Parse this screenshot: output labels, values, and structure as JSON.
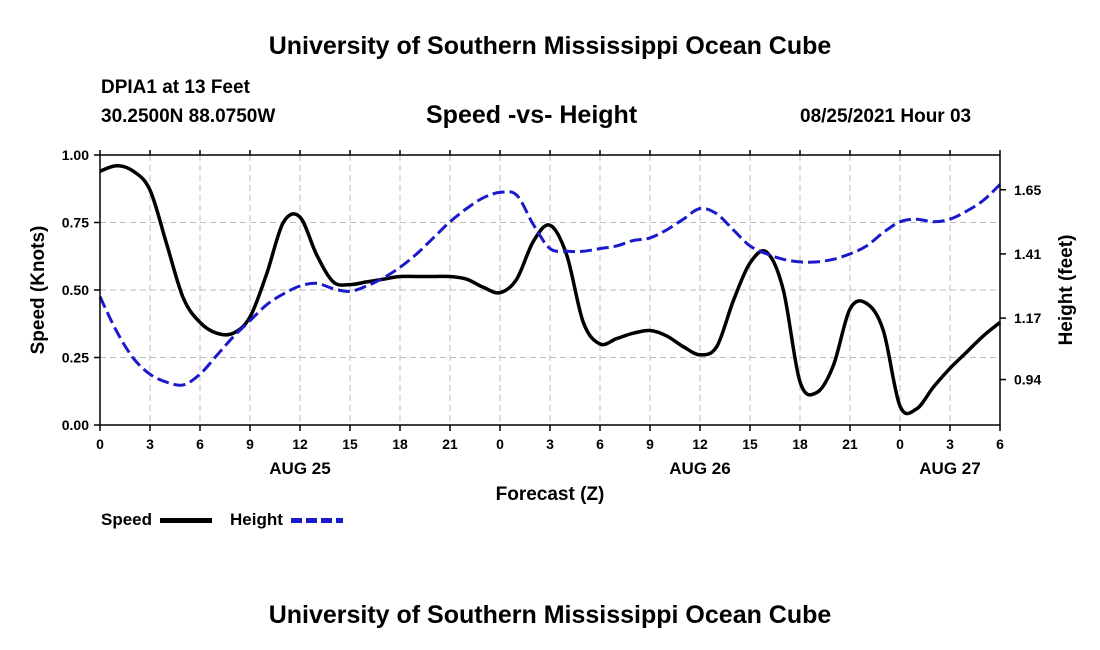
{
  "header": {
    "title": "University of Southern Mississippi Ocean Cube",
    "station": "DPIA1 at 13 Feet",
    "coords": "30.2500N  88.0750W",
    "chart_title": "Speed -vs- Height",
    "timestamp": "08/25/2021 Hour 03"
  },
  "footer": {
    "title": "University of Southern Mississippi Ocean Cube"
  },
  "legend": {
    "speed_label": "Speed",
    "height_label": "Height"
  },
  "colors": {
    "speed": "#000000",
    "height": "#1a1acc",
    "grid": "#bbbbbb"
  },
  "chart_data": {
    "type": "line",
    "title": "Speed -vs- Height",
    "xlabel": "Forecast (Z)",
    "ylabel": "Speed (Knots)",
    "y2label": "Height (feet)",
    "xlim": [
      0,
      54
    ],
    "ylim": [
      0,
      1.0
    ],
    "y2lim": [
      0.77,
      1.78
    ],
    "grid": true,
    "x_ticks": [
      0,
      3,
      6,
      9,
      12,
      15,
      18,
      21,
      24,
      27,
      30,
      33,
      36,
      39,
      42,
      45,
      48,
      51,
      54
    ],
    "x_tick_labels": [
      "0",
      "3",
      "6",
      "9",
      "12",
      "15",
      "18",
      "21",
      "0",
      "3",
      "6",
      "9",
      "12",
      "15",
      "18",
      "21",
      "0",
      "3",
      "6"
    ],
    "date_labels": [
      {
        "x": 12,
        "label": "AUG 25"
      },
      {
        "x": 36,
        "label": "AUG 26"
      },
      {
        "x": 51,
        "label": "AUG 27"
      }
    ],
    "y_ticks": [
      0.0,
      0.25,
      0.5,
      0.75,
      1.0
    ],
    "y_tick_labels": [
      "0.00",
      "0.25",
      "0.50",
      "0.75",
      "1.00"
    ],
    "y2_ticks": [
      0.94,
      1.17,
      1.41,
      1.65
    ],
    "y2_tick_labels": [
      "0.94",
      "1.17",
      "1.41",
      "1.65"
    ],
    "series": [
      {
        "name": "Speed",
        "axis": "left",
        "style": "solid",
        "x": [
          0,
          1,
          2,
          3,
          4,
          5,
          6,
          7,
          8,
          9,
          10,
          11,
          12,
          13,
          14,
          15,
          16,
          17,
          18,
          19,
          20,
          21,
          22,
          23,
          24,
          25,
          26,
          27,
          28,
          29,
          30,
          31,
          32,
          33,
          34,
          35,
          36,
          37,
          38,
          39,
          40,
          41,
          42,
          43,
          44,
          45,
          46,
          47,
          48,
          49,
          50,
          51,
          52,
          53,
          54
        ],
        "values": [
          0.94,
          0.96,
          0.94,
          0.87,
          0.67,
          0.47,
          0.38,
          0.34,
          0.34,
          0.4,
          0.56,
          0.75,
          0.77,
          0.63,
          0.53,
          0.52,
          0.53,
          0.54,
          0.55,
          0.55,
          0.55,
          0.55,
          0.54,
          0.51,
          0.49,
          0.54,
          0.68,
          0.74,
          0.63,
          0.38,
          0.3,
          0.32,
          0.34,
          0.35,
          0.33,
          0.29,
          0.26,
          0.29,
          0.46,
          0.6,
          0.64,
          0.5,
          0.16,
          0.12,
          0.22,
          0.43,
          0.45,
          0.35,
          0.07,
          0.06,
          0.14,
          0.21,
          0.27,
          0.33,
          0.38
        ]
      },
      {
        "name": "Height",
        "axis": "right",
        "style": "dashed",
        "x": [
          0,
          1,
          2,
          3,
          4,
          5,
          6,
          7,
          8,
          9,
          10,
          11,
          12,
          13,
          14,
          15,
          16,
          17,
          18,
          19,
          20,
          21,
          22,
          23,
          24,
          25,
          26,
          27,
          28,
          29,
          30,
          31,
          32,
          33,
          34,
          35,
          36,
          37,
          38,
          39,
          40,
          41,
          42,
          43,
          44,
          45,
          46,
          47,
          48,
          49,
          50,
          51,
          52,
          53,
          54
        ],
        "values": [
          1.25,
          1.12,
          1.02,
          0.96,
          0.93,
          0.92,
          0.96,
          1.03,
          1.1,
          1.16,
          1.22,
          1.26,
          1.29,
          1.3,
          1.28,
          1.27,
          1.29,
          1.32,
          1.36,
          1.41,
          1.47,
          1.53,
          1.58,
          1.62,
          1.64,
          1.63,
          1.52,
          1.43,
          1.42,
          1.42,
          1.43,
          1.44,
          1.46,
          1.47,
          1.5,
          1.54,
          1.58,
          1.56,
          1.5,
          1.44,
          1.41,
          1.39,
          1.38,
          1.38,
          1.39,
          1.41,
          1.44,
          1.49,
          1.53,
          1.54,
          1.53,
          1.54,
          1.57,
          1.61,
          1.67
        ]
      }
    ]
  }
}
